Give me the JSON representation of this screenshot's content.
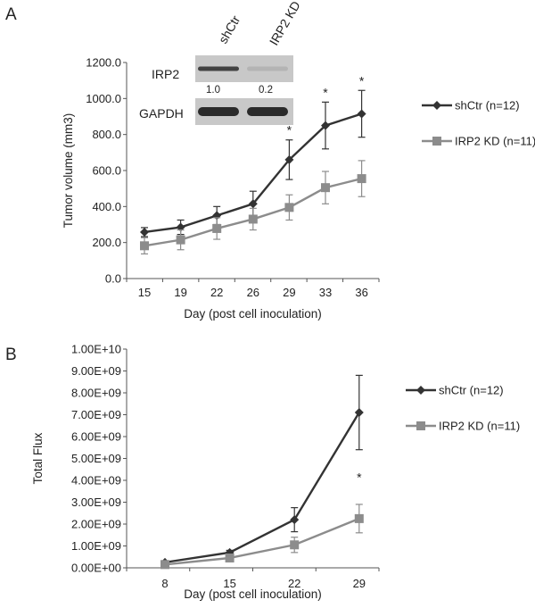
{
  "panels": {
    "A": {
      "letter": "A"
    },
    "B": {
      "letter": "B"
    }
  },
  "inset": {
    "lane_labels": [
      "shCtr",
      "IRP2 KD"
    ],
    "bands": [
      {
        "protein": "IRP2",
        "quantification": [
          "1.0",
          "0.2"
        ],
        "intensity": [
          0.85,
          0.12
        ]
      },
      {
        "protein": "GAPDH",
        "intensity": [
          1.0,
          1.0
        ]
      }
    ],
    "colors": {
      "membrane": "#c8c8c8",
      "band": "#2a2a2a"
    }
  },
  "colors": {
    "shCtr": "#333333",
    "irp2kd": "#8c8c8c",
    "axis": "#555555"
  },
  "chart_data": [
    {
      "id": "A",
      "type": "line",
      "title": "",
      "xlabel": "Day (post cell inoculation)",
      "ylabel": "Tumor volume (mm3)",
      "categories": [
        "15",
        "19",
        "22",
        "26",
        "29",
        "33",
        "36"
      ],
      "yticks": [
        "0.0",
        "200.0",
        "400.0",
        "600.0",
        "800.0",
        "1000.0",
        "1200.0"
      ],
      "ylim": [
        0,
        1200
      ],
      "series": [
        {
          "name": "shCtr (n=12)",
          "marker": "diamond",
          "values": [
            258,
            285,
            350,
            415,
            660,
            850,
            915
          ],
          "errors": [
            25,
            40,
            50,
            70,
            110,
            130,
            130
          ]
        },
        {
          "name": "IRP2 KD (n=11)",
          "marker": "square",
          "values": [
            182,
            215,
            278,
            330,
            395,
            505,
            555
          ],
          "errors": [
            45,
            55,
            60,
            60,
            70,
            90,
            100
          ]
        }
      ],
      "significance": [
        {
          "category": "29",
          "label": "*"
        },
        {
          "category": "33",
          "label": "*"
        },
        {
          "category": "36",
          "label": "*"
        }
      ]
    },
    {
      "id": "B",
      "type": "line",
      "title": "",
      "xlabel": "Day (post cell inoculation)",
      "ylabel": "Total Flux",
      "categories": [
        "8",
        "15",
        "22",
        "29"
      ],
      "yticks": [
        "0.00E+00",
        "1.00E+09",
        "2.00E+09",
        "3.00E+09",
        "4.00E+09",
        "5.00E+09",
        "6.00E+09",
        "7.00E+09",
        "8.00E+09",
        "9.00E+09",
        "1.00E+10"
      ],
      "ylim": [
        0,
        10000000000
      ],
      "series": [
        {
          "name": "shCtr (n=12)",
          "marker": "diamond",
          "values": [
            250000000,
            700000000,
            2200000000,
            7100000000
          ],
          "errors": [
            50000000,
            100000000,
            550000000,
            1700000000
          ]
        },
        {
          "name": "IRP2 KD (n=11)",
          "marker": "square",
          "values": [
            150000000,
            450000000,
            1050000000,
            2250000000
          ],
          "errors": [
            50000000,
            100000000,
            350000000,
            650000000
          ]
        }
      ],
      "significance": [
        {
          "category": "29",
          "label": "*"
        }
      ]
    }
  ]
}
